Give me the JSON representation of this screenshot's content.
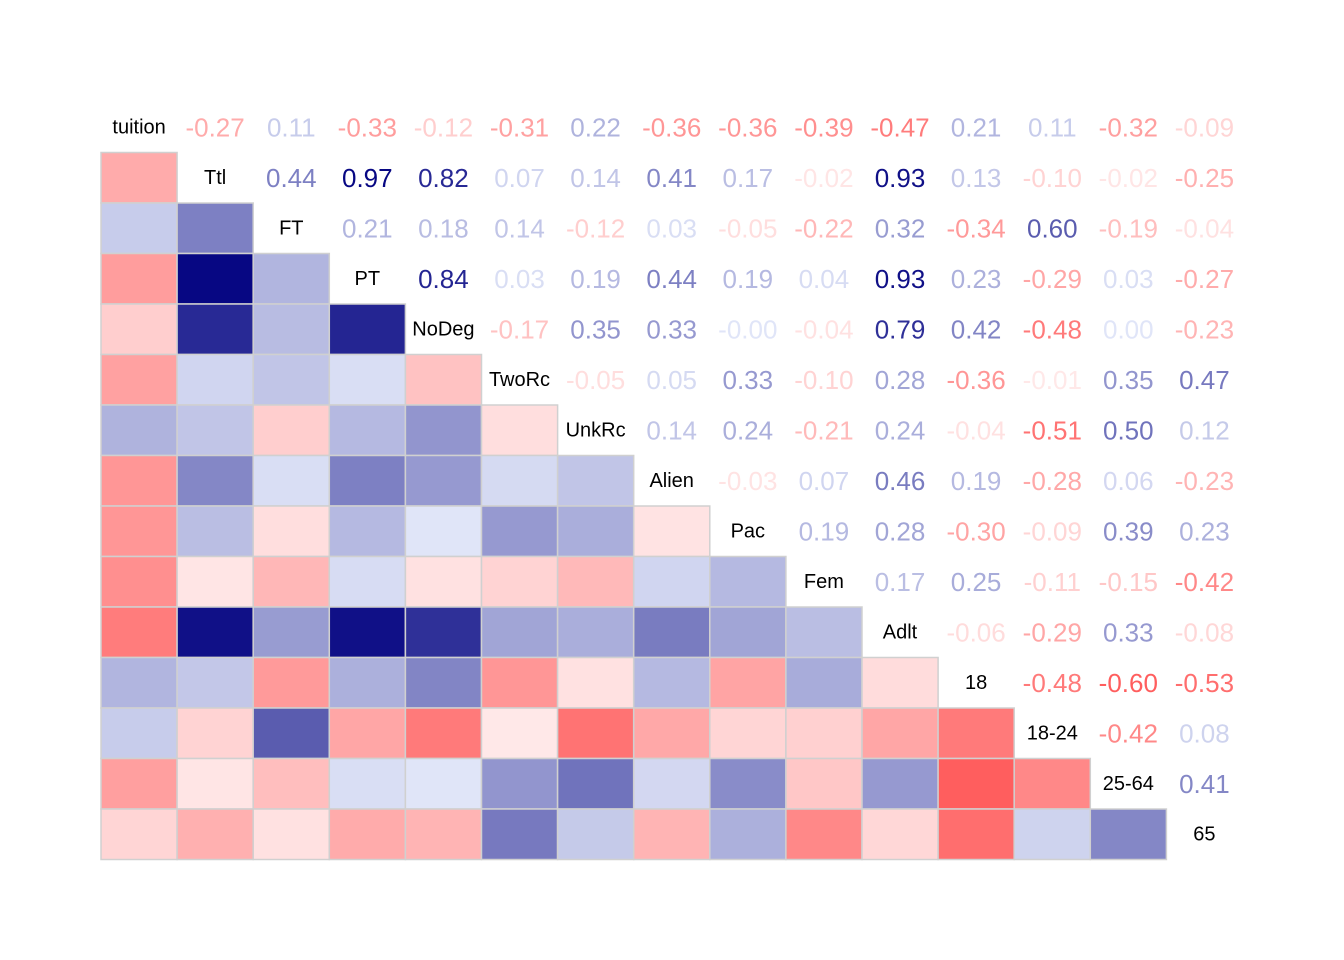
{
  "chart_data": {
    "type": "heatmap",
    "variables": [
      "tuition",
      "Ttl",
      "FT",
      "PT",
      "NoDeg",
      "TwoRc",
      "UnkRc",
      "Alien",
      "Pac",
      "Fem",
      "Adlt",
      "18",
      "18-24",
      "25-64",
      "65"
    ],
    "matrix": [
      [
        1,
        -0.27,
        0.11,
        -0.33,
        -0.12,
        -0.31,
        0.22,
        -0.36,
        -0.36,
        -0.39,
        -0.47,
        0.21,
        0.11,
        -0.32,
        -0.09
      ],
      [
        -0.27,
        1,
        0.44,
        0.97,
        0.82,
        0.07,
        0.14,
        0.41,
        0.17,
        -0.02,
        0.93,
        0.13,
        -0.1,
        -0.02,
        -0.25
      ],
      [
        0.11,
        0.44,
        1,
        0.21,
        0.18,
        0.14,
        -0.12,
        0.03,
        -0.05,
        -0.22,
        0.32,
        -0.34,
        0.6,
        -0.19,
        -0.04
      ],
      [
        -0.33,
        0.97,
        0.21,
        1,
        0.84,
        0.03,
        0.19,
        0.44,
        0.19,
        0.04,
        0.93,
        0.23,
        -0.29,
        0.03,
        -0.27
      ],
      [
        -0.12,
        0.82,
        0.18,
        0.84,
        1,
        -0.17,
        0.35,
        0.33,
        -0.0,
        -0.04,
        0.79,
        0.42,
        -0.48,
        0.0,
        -0.23
      ],
      [
        -0.31,
        0.07,
        0.14,
        0.03,
        -0.17,
        1,
        -0.05,
        0.05,
        0.33,
        -0.1,
        0.28,
        -0.36,
        -0.01,
        0.35,
        0.47
      ],
      [
        0.22,
        0.14,
        -0.12,
        0.19,
        0.35,
        -0.05,
        1,
        0.14,
        0.24,
        -0.21,
        0.24,
        -0.04,
        -0.51,
        0.5,
        0.12
      ],
      [
        -0.36,
        0.41,
        0.03,
        0.44,
        0.33,
        0.05,
        0.14,
        1,
        -0.03,
        0.07,
        0.46,
        0.19,
        -0.28,
        0.06,
        -0.23
      ],
      [
        -0.36,
        0.17,
        -0.05,
        0.19,
        -0.0,
        0.33,
        0.24,
        -0.03,
        1,
        0.19,
        0.28,
        -0.3,
        -0.09,
        0.39,
        0.23
      ],
      [
        -0.39,
        -0.02,
        -0.22,
        0.04,
        -0.04,
        -0.1,
        -0.21,
        0.07,
        0.19,
        1,
        0.17,
        0.25,
        -0.11,
        -0.15,
        -0.42
      ],
      [
        -0.47,
        0.93,
        0.32,
        0.93,
        0.79,
        0.28,
        0.24,
        0.46,
        0.28,
        0.17,
        1,
        -0.06,
        -0.29,
        0.33,
        -0.08
      ],
      [
        0.21,
        0.13,
        -0.34,
        0.23,
        0.42,
        -0.36,
        -0.04,
        0.19,
        -0.3,
        0.25,
        -0.06,
        1,
        -0.48,
        -0.6,
        -0.53
      ],
      [
        0.11,
        -0.1,
        0.6,
        -0.29,
        -0.48,
        -0.01,
        -0.51,
        -0.28,
        -0.09,
        -0.11,
        -0.29,
        -0.48,
        1,
        -0.42,
        0.08
      ],
      [
        -0.32,
        -0.02,
        -0.19,
        0.03,
        0.0,
        0.35,
        0.5,
        0.06,
        0.39,
        -0.15,
        0.33,
        -0.6,
        -0.42,
        1,
        0.41
      ],
      [
        -0.09,
        -0.25,
        -0.04,
        -0.27,
        -0.23,
        0.47,
        0.12,
        -0.23,
        0.23,
        -0.42,
        -0.08,
        -0.53,
        0.08,
        0.41,
        1
      ]
    ],
    "lower_triangle": "colored tiles",
    "upper_triangle": "correlation values as colored text",
    "diagonal": "variable names",
    "color_scale": {
      "negative_strong": "#ff0000",
      "negative_weak": "#ffeaea",
      "positive_weak": "#e0e5f8",
      "positive_strong": "#00007f"
    },
    "grid_line_color": "#d0d0d0"
  }
}
